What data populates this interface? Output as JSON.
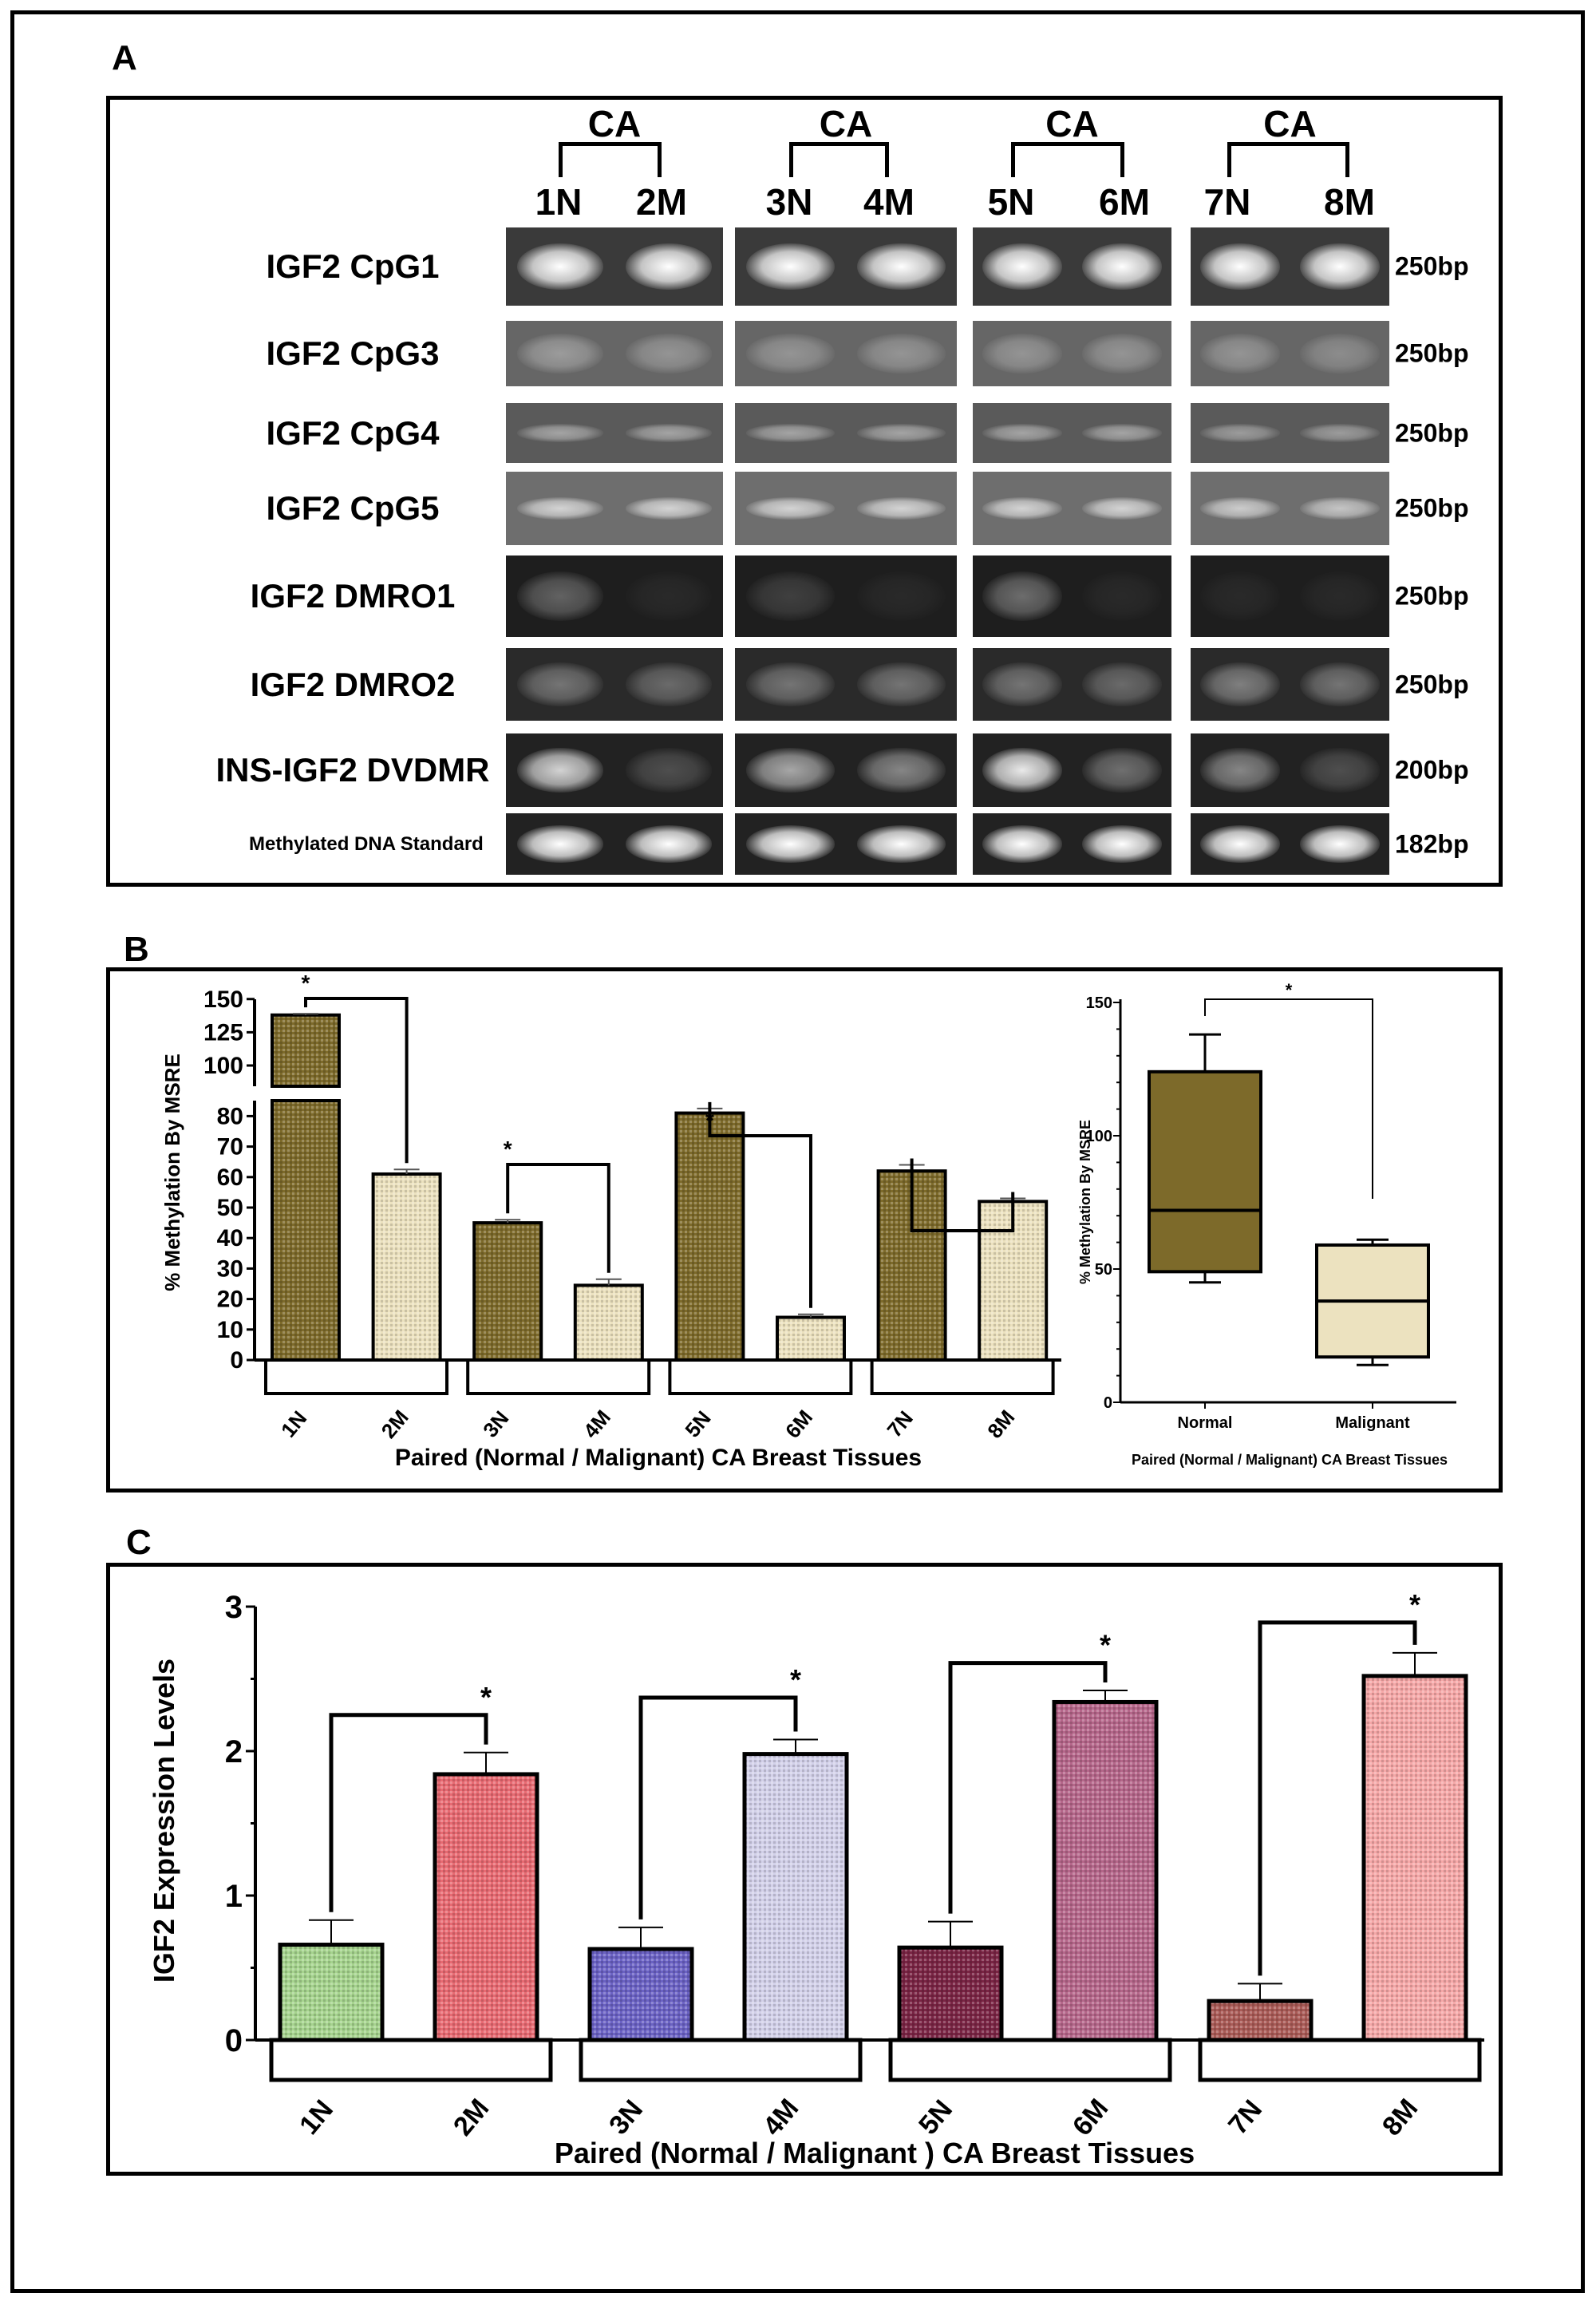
{
  "panel_labels": {
    "a": "A",
    "b": "B",
    "c": "C"
  },
  "gel": {
    "group_label": "CA",
    "lanes": [
      "1N",
      "2M",
      "3N",
      "4M",
      "5N",
      "6M",
      "7N",
      "8M"
    ],
    "rows": [
      {
        "label": "IGF2 CpG1",
        "size": "250bp",
        "intensity": [
          1,
          1,
          1,
          1,
          1,
          1,
          1,
          1
        ],
        "bg": "#3a3a3a"
      },
      {
        "label": "IGF2 CpG3",
        "size": "250bp",
        "intensity": [
          0.35,
          0.3,
          0.3,
          0.3,
          0.3,
          0.3,
          0.3,
          0.25
        ],
        "bg": "#666666"
      },
      {
        "label": "IGF2 CpG4",
        "size": "250bp",
        "intensity": [
          0.45,
          0.45,
          0.45,
          0.45,
          0.45,
          0.45,
          0.4,
          0.4
        ],
        "bg": "#5a5a5a"
      },
      {
        "label": "IGF2 CpG5",
        "size": "250bp",
        "intensity": [
          0.7,
          0.7,
          0.7,
          0.7,
          0.7,
          0.7,
          0.65,
          0.6
        ],
        "bg": "#6e6e6e"
      },
      {
        "label": "IGF2 DMRO1",
        "size": "250bp",
        "intensity": [
          0.3,
          0.05,
          0.15,
          0.05,
          0.35,
          0.05,
          0.05,
          0.05
        ],
        "bg": "#1e1e1e"
      },
      {
        "label": "IGF2 DMRO2",
        "size": "250bp",
        "intensity": [
          0.35,
          0.3,
          0.35,
          0.35,
          0.35,
          0.3,
          0.4,
          0.35
        ],
        "bg": "#2a2a2a"
      },
      {
        "label": "INS-IGF2 DVDMR",
        "size": "200bp",
        "intensity": [
          0.8,
          0.2,
          0.6,
          0.45,
          0.9,
          0.35,
          0.45,
          0.2
        ],
        "bg": "#222222"
      },
      {
        "label": "Methylated DNA Standard",
        "size": "182bp",
        "intensity": [
          1,
          1,
          1,
          1,
          1,
          1,
          1,
          1
        ],
        "bg": "#222222"
      }
    ]
  },
  "chart_data": [
    {
      "type": "bar",
      "ylabel": "% Methylation By MSRE",
      "xlabel": "Paired (Normal / Malignant) CA Breast Tissues",
      "categories": [
        "1N",
        "2M",
        "3N",
        "4M",
        "5N",
        "6M",
        "7N",
        "8M"
      ],
      "values": [
        138,
        61,
        45,
        24.5,
        81,
        14,
        62,
        52
      ],
      "errors": [
        1,
        1.5,
        1,
        2,
        1.5,
        1,
        2,
        1
      ],
      "yticks": [
        0,
        10,
        20,
        30,
        40,
        50,
        60,
        70,
        80,
        100,
        125,
        150
      ],
      "ylim": [
        0,
        150
      ],
      "axis_break": [
        85,
        90
      ],
      "pairs": [
        {
          "from": "1N",
          "to": "2M",
          "sig": "*"
        },
        {
          "from": "3N",
          "to": "4M",
          "sig": "*"
        },
        {
          "from": "5N",
          "to": "6M",
          "sig": "*"
        },
        {
          "from": "7N",
          "to": "8M",
          "sig": ""
        }
      ],
      "colors": {
        "normal": "#7d6a2a",
        "malignant": "#ece2bf"
      }
    },
    {
      "type": "box",
      "ylabel": "% Methylation By MSRE",
      "xlabel": "Paired (Normal / Malignant) CA Breast Tissues",
      "categories": [
        "Normal",
        "Malignant"
      ],
      "boxes": [
        {
          "min": 45,
          "q1": 49,
          "median": 72,
          "q3": 124,
          "max": 138,
          "color": "#7d6a2a"
        },
        {
          "min": 14,
          "q1": 17,
          "median": 38,
          "q3": 59,
          "max": 61,
          "color": "#ece2bf"
        }
      ],
      "yticks": [
        0,
        50,
        100,
        150
      ],
      "ylim": [
        0,
        150
      ],
      "sig": "*"
    },
    {
      "type": "bar",
      "ylabel": "IGF2 Expression Levels",
      "xlabel": "Paired (Normal / Malignant ) CA Breast Tissues",
      "categories": [
        "1N",
        "2M",
        "3N",
        "4M",
        "5N",
        "6M",
        "7N",
        "8M"
      ],
      "values": [
        0.66,
        1.84,
        0.63,
        1.98,
        0.64,
        2.34,
        0.27,
        2.52
      ],
      "errors": [
        0.17,
        0.15,
        0.15,
        0.1,
        0.18,
        0.08,
        0.12,
        0.16
      ],
      "yticks": [
        0,
        1,
        2,
        3
      ],
      "ylim": [
        0,
        3
      ],
      "pairs": [
        {
          "from": "1N",
          "to": "2M",
          "sig": "*",
          "level": 2.25
        },
        {
          "from": "3N",
          "to": "4M",
          "sig": "*",
          "level": 2.37
        },
        {
          "from": "5N",
          "to": "6M",
          "sig": "*",
          "level": 2.61
        },
        {
          "from": "7N",
          "to": "8M",
          "sig": "*",
          "level": 2.89
        }
      ],
      "colors": [
        "#a6d48e",
        "#e86a72",
        "#6b62c4",
        "#d3d1ea",
        "#7a2444",
        "#b5668a",
        "#a95a56",
        "#f6a8a8"
      ]
    }
  ]
}
